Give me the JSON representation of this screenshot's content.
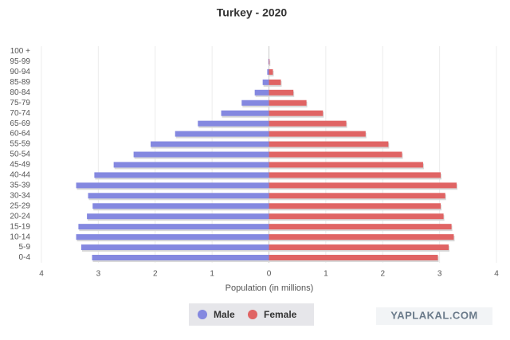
{
  "chart_data": {
    "type": "pyramid",
    "title": "Turkey - 2020",
    "x_label": "Population (in millions)",
    "categories": [
      "0-4",
      "5-9",
      "10-14",
      "15-19",
      "20-24",
      "25-29",
      "30-34",
      "35-39",
      "40-44",
      "45-49",
      "50-54",
      "55-59",
      "60-64",
      "65-69",
      "70-74",
      "75-79",
      "80-84",
      "85-89",
      "90-94",
      "95-99",
      "100 +"
    ],
    "series": [
      {
        "name": "Male",
        "color": "#8488e0",
        "values": [
          -3.11,
          -3.3,
          -3.39,
          -3.35,
          -3.2,
          -3.1,
          -3.18,
          -3.39,
          -3.07,
          -2.73,
          -2.38,
          -2.08,
          -1.65,
          -1.25,
          -0.84,
          -0.48,
          -0.25,
          -0.11,
          -0.03,
          -0.01,
          0
        ]
      },
      {
        "name": "Female",
        "color": "#e06464",
        "values": [
          2.97,
          3.16,
          3.25,
          3.21,
          3.07,
          3.02,
          3.1,
          3.3,
          3.02,
          2.71,
          2.34,
          2.1,
          1.7,
          1.36,
          0.95,
          0.66,
          0.43,
          0.21,
          0.07,
          0.01,
          0
        ]
      }
    ],
    "xlim": [
      -4,
      4
    ],
    "xticks": [
      {
        "value": -4,
        "label": "4"
      },
      {
        "value": -3,
        "label": "3"
      },
      {
        "value": -2,
        "label": "2"
      },
      {
        "value": -1,
        "label": "1"
      },
      0,
      1,
      2,
      3,
      4
    ],
    "grid": true,
    "watermark": "YAPLAKAL.COM"
  }
}
